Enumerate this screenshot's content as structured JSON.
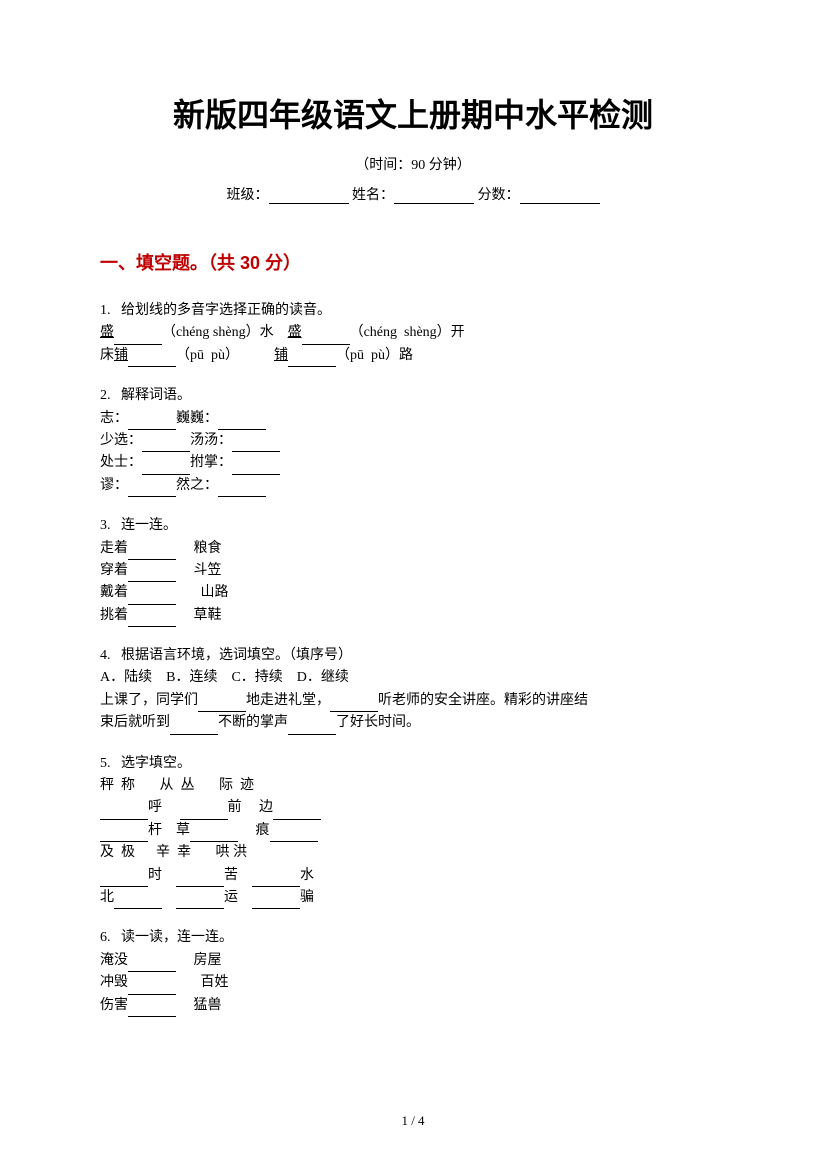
{
  "header": {
    "title": "新版四年级语文上册期中水平检测",
    "subtitle": "（时间：90 分钟）",
    "class_label": "班级：",
    "name_label": " 姓名：",
    "score_label": "分数："
  },
  "section": {
    "title": "一、填空题。（共 30 分）"
  },
  "q1": {
    "num": "1.",
    "prompt": "给划线的多音字选择正确的读音。",
    "char1a": "盛",
    "py1": "（chéng shèng）水",
    "gap1": "    ",
    "char1b": "盛",
    "py2": "（chéng  shèng）开",
    "line2a": "床",
    "char2a": "铺",
    "py3": "（pū  pù）",
    "gap2": "          ",
    "char2b": "铺",
    "py4": "（pū  pù）路"
  },
  "q2": {
    "num": "2.",
    "prompt": "解释词语。",
    "w1": "志：",
    "w2": "巍巍：",
    "w3": "少选：",
    "w4": "汤汤：",
    "w5": "处士：",
    "w6": "拊掌：",
    "w7": "谬：",
    "w8": "然之："
  },
  "q3": {
    "num": "3.",
    "prompt": "连一连。",
    "a1": "走着",
    "b1": "粮食",
    "a2": "穿着",
    "b2": "斗笠",
    "a3": "戴着",
    "b3": "山路",
    "a4": "挑着",
    "b4": "草鞋"
  },
  "q4": {
    "num": "4.",
    "prompt": "根据语言环境，选词填空。（填序号）",
    "opts": "A．陆续    B．连续    C．持续    D．继续",
    "s1": "上课了，同学们",
    "s2": "地走进礼堂，",
    "s3": "听老师的安全讲座。精彩的讲座结",
    "s4": "束后就听到",
    "s5": "不断的掌声",
    "s6": "了好长时间。"
  },
  "q5": {
    "num": "5.",
    "prompt": "选字填空。",
    "g1": "秤  称       从  丛       际  迹",
    "r1a": "呼",
    "r1b": "前",
    "r1c": "边",
    "r2a": "杆",
    "r2b": "草",
    "r2c": "痕",
    "g2": "及  极      辛  幸       哄 洪",
    "r3a": "时",
    "r3b": "苦",
    "r3c": "水",
    "r4a": "北",
    "r4b": "运",
    "r4c": "骗"
  },
  "q6": {
    "num": "6.",
    "prompt": "读一读，连一连。",
    "a1": "淹没",
    "b1": "房屋",
    "a2": "冲毁",
    "b2": "百姓",
    "a3": "伤害",
    "b3": "猛兽"
  },
  "footer": {
    "page": "1 / 4"
  }
}
